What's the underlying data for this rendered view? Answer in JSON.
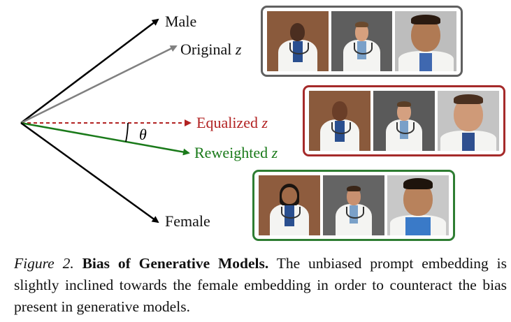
{
  "diagram": {
    "labels": {
      "male": "Male",
      "original": "Original",
      "equalized": "Equalized",
      "reweighted": "Reweighted",
      "female": "Female",
      "z": "z",
      "theta": "θ"
    },
    "colors": {
      "male": "#000000",
      "original": "#808080",
      "equalized": "#b22222",
      "reweighted": "#1a7a1a",
      "female": "#000000"
    },
    "rows": [
      {
        "name": "original",
        "border": "#606060"
      },
      {
        "name": "equalized",
        "border": "#a52a2a"
      },
      {
        "name": "reweighted",
        "border": "#2e7d32"
      }
    ]
  },
  "caption": {
    "figure_label": "Figure 2.",
    "title": "Bias of Generative Models.",
    "text": "The unbiased prompt embedding is slightly inclined towards the female embedding in order to counteract the bias present in generative models."
  }
}
